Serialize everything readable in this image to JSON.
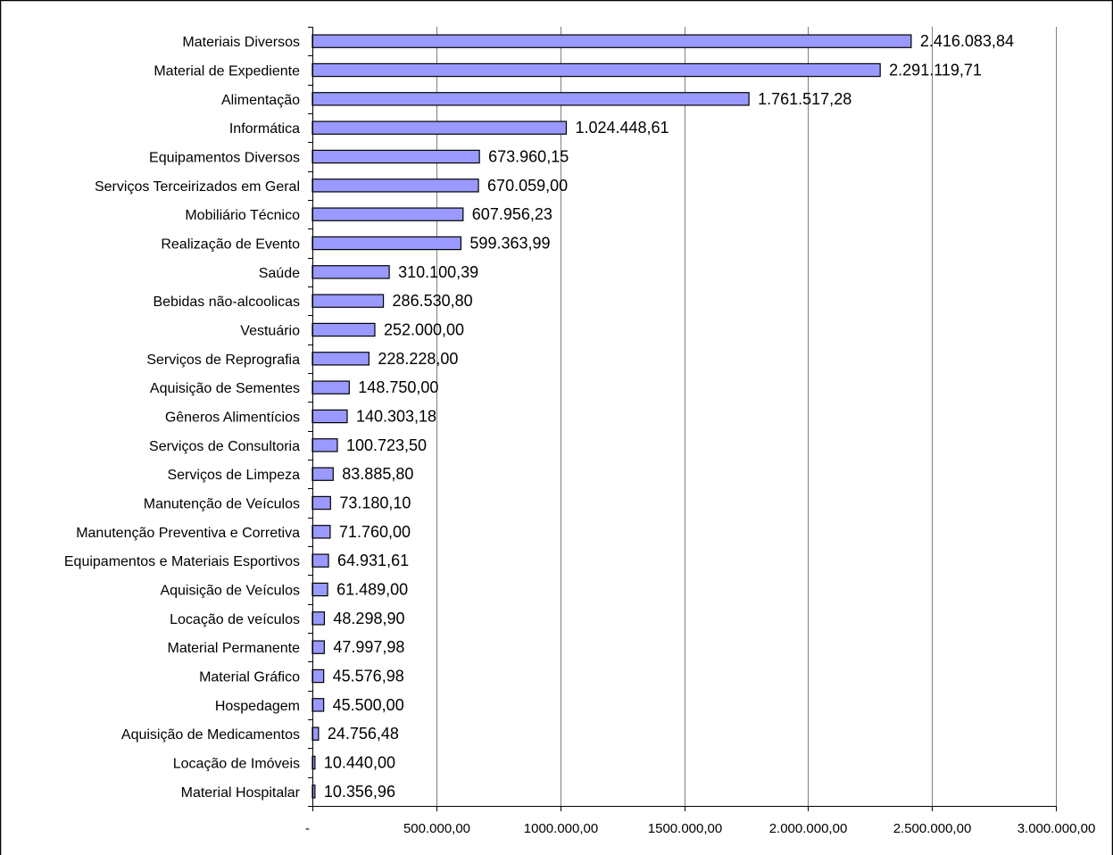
{
  "chart_data": {
    "type": "bar",
    "orientation": "horizontal",
    "categories": [
      "Materiais Diversos",
      "Material de Expediente",
      "Alimentação",
      "Informática",
      "Equipamentos Diversos",
      "Serviços Terceirizados em Geral",
      "Mobiliário Técnico",
      "Realização de Evento",
      "Saúde",
      "Bebidas não-alcoolicas",
      "Vestuário",
      "Serviços de Reprografia",
      "Aquisição de Sementes",
      "Gêneros Alimentícios",
      "Serviços de Consultoria",
      "Serviços de Limpeza",
      "Manutenção de Veículos",
      "Manutenção Preventiva e Corretiva",
      "Equipamentos e Materiais Esportivos",
      "Aquisição de Veículos",
      "Locação de veículos",
      "Material Permanente",
      "Material Gráfico",
      "Hospedagem",
      "Aquisição de Medicamentos",
      "Locação de Imóveis",
      "Material Hospitalar"
    ],
    "values": [
      2416083.84,
      2291119.71,
      1761517.28,
      1024448.61,
      673960.15,
      670059.0,
      607956.23,
      599363.99,
      310100.39,
      286530.8,
      252000.0,
      228228.0,
      148750.0,
      140303.18,
      100723.5,
      83885.8,
      73180.1,
      71760.0,
      64931.61,
      61489.0,
      48298.9,
      47997.98,
      45576.98,
      45500.0,
      24756.48,
      10440.0,
      10356.96
    ],
    "data_labels": [
      "2.416.083,84",
      "2.291.119,71",
      "1.761.517,28",
      "1.024.448,61",
      "673.960,15",
      "670.059,00",
      "607.956,23",
      "599.363,99",
      "310.100,39",
      "286.530,80",
      "252.000,00",
      "228.228,00",
      "148.750,00",
      "140.303,18",
      "100.723,50",
      "83.885,80",
      "73.180,10",
      "71.760,00",
      "64.931,61",
      "61.489,00",
      "48.298,90",
      "47.997,98",
      "45.576,98",
      "45.500,00",
      "24.756,48",
      "10.440,00",
      "10.356,96"
    ],
    "xlim": [
      0,
      3000000
    ],
    "x_ticks": [
      0,
      500000,
      1000000,
      1500000,
      2000000,
      2500000,
      3000000
    ],
    "x_tick_labels": [
      "-",
      "500.000,00",
      "1000.000,00",
      "1500.000,00",
      "2.000.000,00",
      "2.500.000,00",
      "3.000.000,00"
    ],
    "grid": "vertical",
    "legend": "none",
    "bar_color": "#9999ff",
    "title": "",
    "xlabel": "",
    "ylabel": ""
  }
}
